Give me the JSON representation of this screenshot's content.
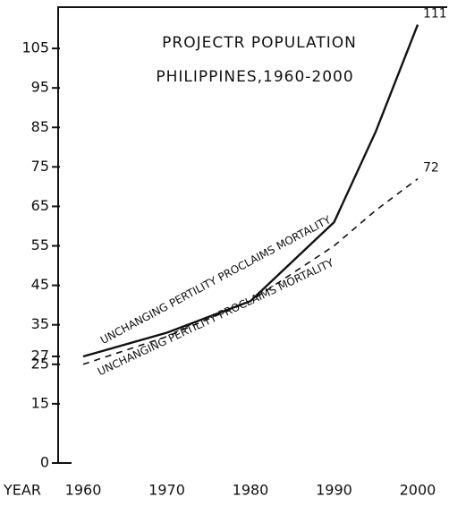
{
  "chart_data": {
    "type": "line",
    "title": "PROJECTR POPULATION",
    "subtitle": "PHILIPPINES,1960-2000",
    "x_label": "YEAR",
    "x": [
      1960,
      1970,
      1980,
      1990,
      1995,
      2000
    ],
    "xlim": [
      1957,
      2003
    ],
    "xticks": [
      1960,
      1970,
      1980,
      1990,
      2000
    ],
    "ylim": [
      0,
      115
    ],
    "yticks": [
      0,
      15,
      25,
      27,
      35,
      45,
      55,
      65,
      75,
      85,
      95,
      105
    ],
    "series": [
      {
        "name": "UNCHANGING PERTILITY PROCLAIMS MORTALITY",
        "color": "#111111",
        "dash": false,
        "values": [
          27,
          33,
          41,
          61,
          84,
          111
        ]
      },
      {
        "name": "UNCHANGING PERTILITY PROCLAIMS MORTALITY",
        "color": "#111111",
        "dash": true,
        "values": [
          25,
          32,
          41,
          55,
          64,
          72
        ]
      }
    ]
  }
}
